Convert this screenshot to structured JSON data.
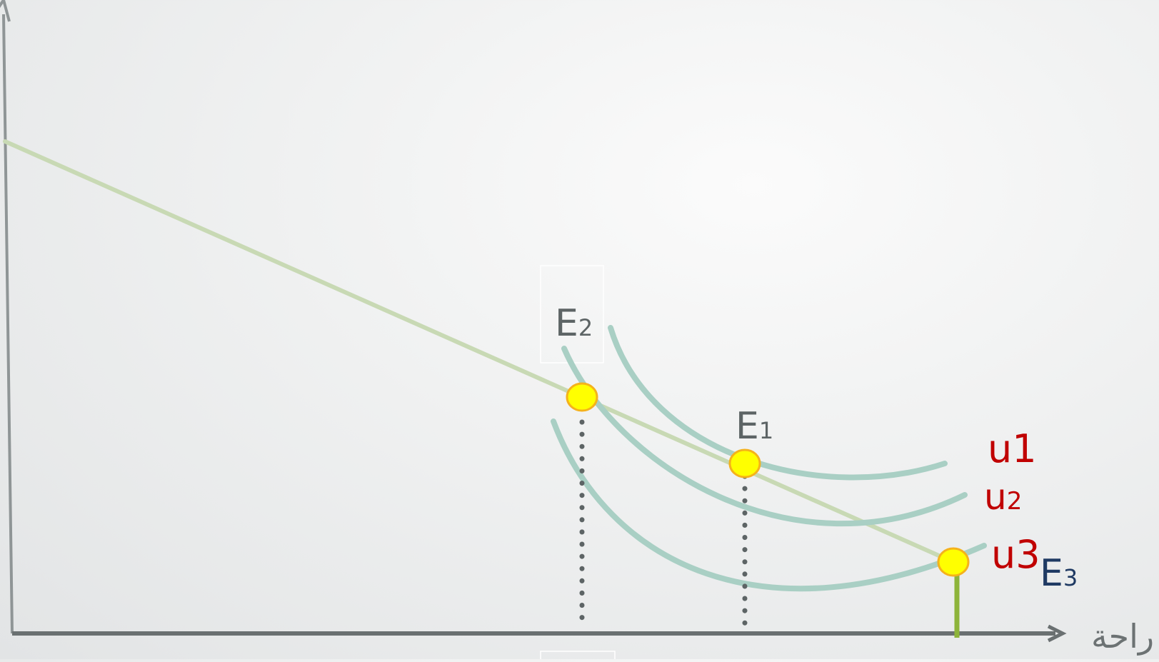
{
  "diagram": {
    "x_axis_label": "راحة",
    "points": [
      {
        "id": "E1",
        "letter": "E",
        "sub": "1"
      },
      {
        "id": "E2",
        "letter": "E",
        "sub": "2"
      },
      {
        "id": "E3",
        "letter": "E",
        "sub": "3"
      }
    ],
    "curves": [
      {
        "id": "u1",
        "main": "u1",
        "sub": ""
      },
      {
        "id": "u2",
        "main": "u",
        "sub": "2"
      },
      {
        "id": "u3",
        "main": "u3",
        "sub": ""
      }
    ],
    "colors": {
      "axis": "#6a7071",
      "budget_line": "#c8d9b4",
      "indifference_curve": "#a9cfc4",
      "point_fill": "#ffff00",
      "point_stroke": "#f5b21b",
      "dotted_drop": "#5d6465",
      "solid_drop": "#8db43a",
      "curve_label": "#c00000",
      "E3_label": "#1f3a63"
    }
  }
}
